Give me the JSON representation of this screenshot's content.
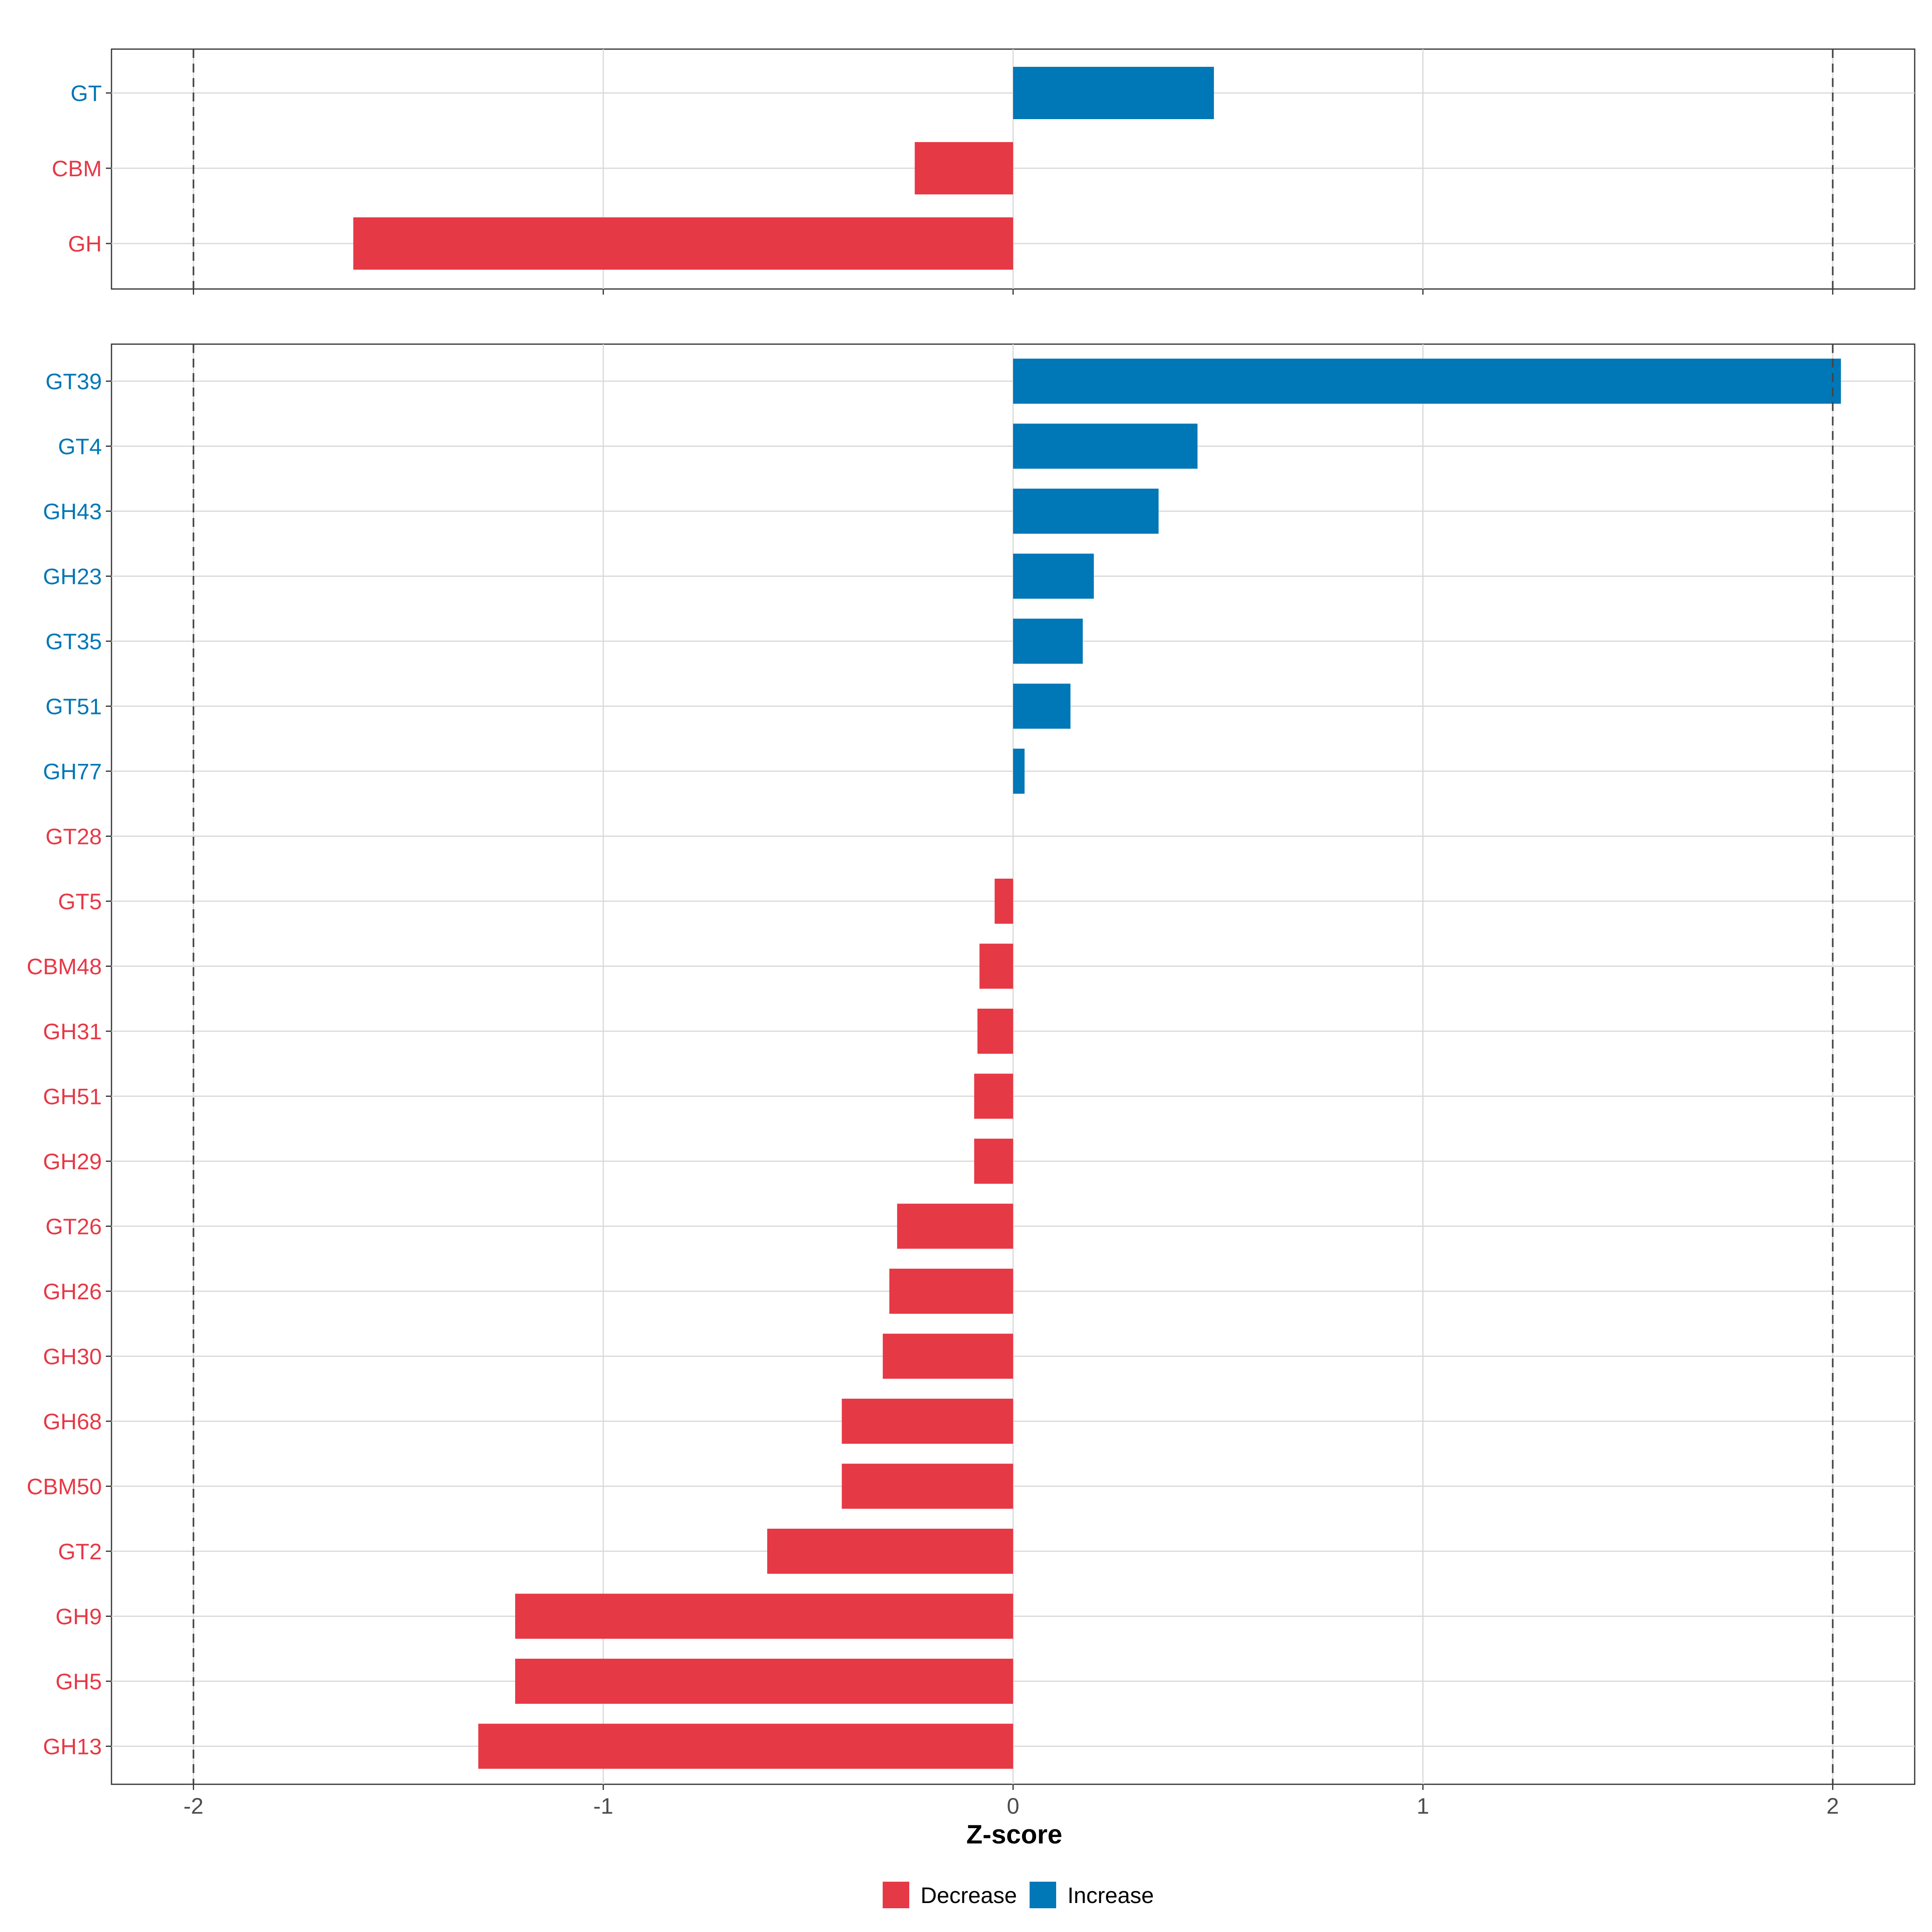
{
  "chart_data": [
    {
      "type": "bar",
      "orientation": "horizontal",
      "panel": "top",
      "categories": [
        "GT",
        "CBM",
        "GH"
      ],
      "values": [
        0.49,
        -0.24,
        -1.61
      ],
      "groups": [
        "Increase",
        "Decrease",
        "Decrease"
      ],
      "xlim": [
        -2.2,
        2.2
      ],
      "reference_lines": [
        -2,
        2
      ]
    },
    {
      "type": "bar",
      "orientation": "horizontal",
      "panel": "bottom",
      "categories": [
        "GT39",
        "GT4",
        "GH43",
        "GH23",
        "GT35",
        "GT51",
        "GH77",
        "GT28",
        "GT5",
        "CBM48",
        "GH31",
        "GH51",
        "GH29",
        "GT26",
        "GH26",
        "GH30",
        "GH68",
        "CBM50",
        "GT2",
        "GH9",
        "GH5",
        "GH13"
      ],
      "values": [
        2.02,
        0.45,
        0.355,
        0.197,
        0.17,
        0.14,
        0.028,
        0.0,
        -0.045,
        -0.082,
        -0.087,
        -0.095,
        -0.095,
        -0.283,
        -0.302,
        -0.318,
        -0.418,
        -0.418,
        -0.6,
        -1.215,
        -1.215,
        -1.305
      ],
      "groups": [
        "Increase",
        "Increase",
        "Increase",
        "Increase",
        "Increase",
        "Increase",
        "Increase",
        "Decrease",
        "Decrease",
        "Decrease",
        "Decrease",
        "Decrease",
        "Decrease",
        "Decrease",
        "Decrease",
        "Decrease",
        "Decrease",
        "Decrease",
        "Decrease",
        "Decrease",
        "Decrease",
        "Decrease"
      ],
      "xlim": [
        -2.2,
        2.2
      ],
      "reference_lines": [
        -2,
        2
      ]
    }
  ],
  "x_axis": {
    "title": "Z-score",
    "ticks": [
      -2,
      -1,
      0,
      1,
      2
    ],
    "tick_labels": [
      "-2",
      "-1",
      "0",
      "1",
      "2"
    ]
  },
  "legend": {
    "position": "bottom",
    "items": [
      {
        "label": "Decrease",
        "color": "#E63946"
      },
      {
        "label": "Increase",
        "color": "#0077B6"
      }
    ]
  },
  "colors": {
    "Decrease": "#E63946",
    "Increase": "#0077B6"
  }
}
